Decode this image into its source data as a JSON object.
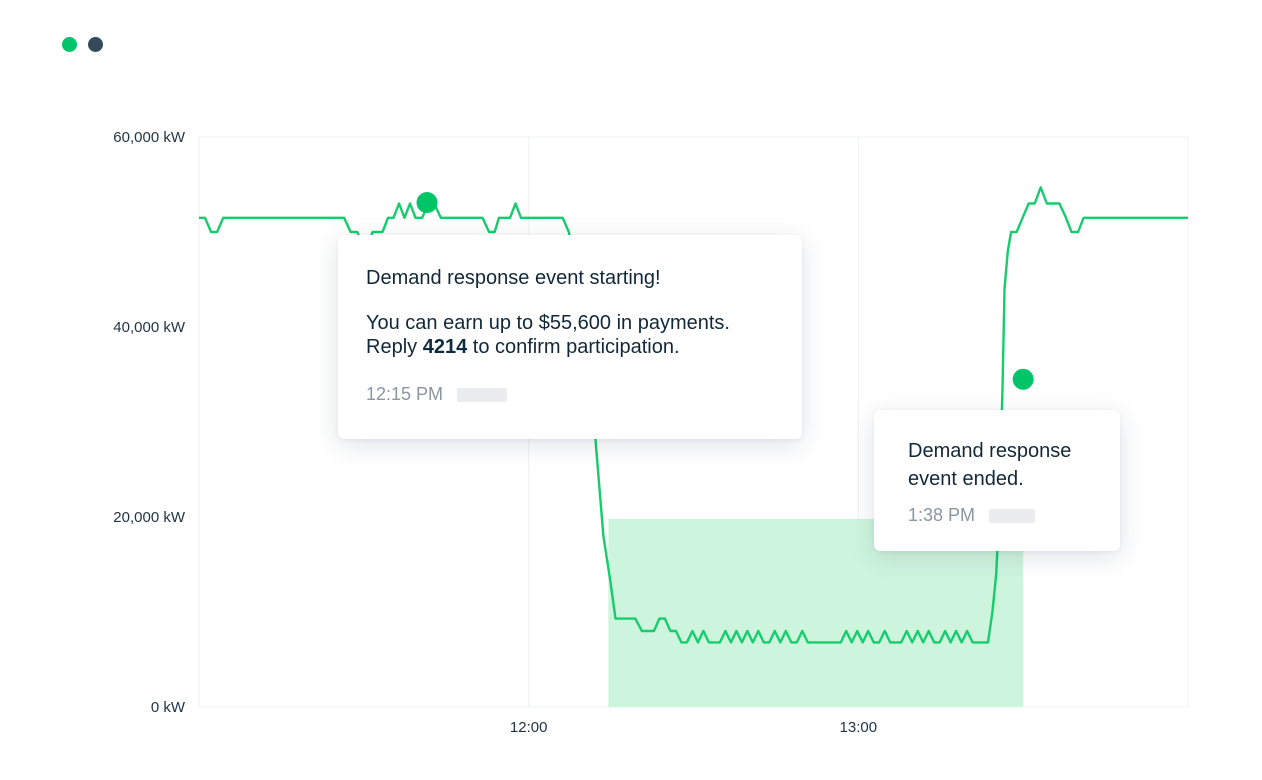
{
  "window": {
    "dot_colors": [
      "#00c468",
      "#344a5a"
    ]
  },
  "colors": {
    "line": "#16cc6c",
    "marker": "#00c468",
    "event_fill": "#cdf5de",
    "grid": "#eef1f3",
    "axis_text": "#1f3344"
  },
  "chart_data": {
    "type": "line",
    "y_unit": "kW",
    "ylim": [
      0,
      60000
    ],
    "yticks": [
      {
        "value": 0,
        "label": "0 kW"
      },
      {
        "value": 20000,
        "label": "20,000 kW"
      },
      {
        "value": 40000,
        "label": "40,000 kW"
      },
      {
        "value": 60000,
        "label": "60,000 kW"
      }
    ],
    "xlim_minutes": [
      660,
      840
    ],
    "xticks": [
      {
        "value": 720,
        "label": "12:00"
      },
      {
        "value": 780,
        "label": "13:00"
      }
    ],
    "grid": true,
    "series": [
      {
        "points": [
          [
            660,
            51500
          ],
          [
            661.1,
            51500
          ],
          [
            662.2,
            50000
          ],
          [
            663.3,
            50000
          ],
          [
            664.4,
            51500
          ],
          [
            665.5,
            51500
          ],
          [
            667,
            51500
          ],
          [
            668.5,
            51500
          ],
          [
            670,
            51500
          ],
          [
            671.5,
            51500
          ],
          [
            673,
            51500
          ],
          [
            674.5,
            51500
          ],
          [
            676,
            51500
          ],
          [
            677.5,
            51500
          ],
          [
            679,
            51500
          ],
          [
            680.5,
            51500
          ],
          [
            682,
            51500
          ],
          [
            683.5,
            51500
          ],
          [
            685,
            51500
          ],
          [
            686.4,
            51500
          ],
          [
            687.6,
            50000
          ],
          [
            688.8,
            50000
          ],
          [
            689.8,
            48800
          ],
          [
            690.8,
            48800
          ],
          [
            691.6,
            50000
          ],
          [
            692.4,
            50000
          ],
          [
            693.4,
            50000
          ],
          [
            694.4,
            51500
          ],
          [
            695.4,
            51500
          ],
          [
            696.4,
            53000
          ],
          [
            697.4,
            51500
          ],
          [
            698.4,
            53000
          ],
          [
            699.4,
            51500
          ],
          [
            700.6,
            51500
          ],
          [
            701.8,
            53000
          ],
          [
            702.8,
            53000
          ],
          [
            704,
            51500
          ],
          [
            705.5,
            51500
          ],
          [
            707,
            51500
          ],
          [
            708.5,
            51500
          ],
          [
            710,
            51500
          ],
          [
            711.6,
            51500
          ],
          [
            712.8,
            50000
          ],
          [
            713.8,
            50000
          ],
          [
            714.6,
            51500
          ],
          [
            715.6,
            51500
          ],
          [
            716.6,
            51500
          ],
          [
            717.6,
            53000
          ],
          [
            718.6,
            51500
          ],
          [
            720,
            51500
          ],
          [
            721.5,
            51500
          ],
          [
            723,
            51500
          ],
          [
            724.5,
            51500
          ],
          [
            726.2,
            51500
          ],
          [
            727.3,
            50000
          ],
          [
            728,
            48000
          ],
          [
            729.2,
            45500
          ],
          [
            730,
            42000
          ],
          [
            730.8,
            38000
          ],
          [
            731.3,
            35000
          ],
          [
            731.9,
            30000
          ],
          [
            732.6,
            25000
          ],
          [
            733.6,
            18000
          ],
          [
            734.8,
            13500
          ],
          [
            735.8,
            9300
          ],
          [
            737,
            9300
          ],
          [
            738.2,
            9300
          ],
          [
            739.4,
            9300
          ],
          [
            740.6,
            8000
          ],
          [
            741.8,
            8000
          ],
          [
            742.8,
            8000
          ],
          [
            743.8,
            9300
          ],
          [
            744.8,
            9300
          ],
          [
            745.8,
            8000
          ],
          [
            746.8,
            8000
          ],
          [
            747.8,
            6800
          ],
          [
            748.8,
            6800
          ],
          [
            749.8,
            8000
          ],
          [
            750.8,
            6800
          ],
          [
            751.8,
            8000
          ],
          [
            752.8,
            6800
          ],
          [
            753.8,
            6800
          ],
          [
            754.8,
            6800
          ],
          [
            755.8,
            8000
          ],
          [
            756.8,
            6800
          ],
          [
            757.8,
            8000
          ],
          [
            758.8,
            6800
          ],
          [
            759.8,
            8000
          ],
          [
            760.8,
            6800
          ],
          [
            761.8,
            8000
          ],
          [
            762.8,
            6800
          ],
          [
            763.8,
            6800
          ],
          [
            764.8,
            8000
          ],
          [
            765.8,
            6800
          ],
          [
            766.8,
            8000
          ],
          [
            767.8,
            6800
          ],
          [
            768.8,
            6800
          ],
          [
            769.8,
            8000
          ],
          [
            770.8,
            6800
          ],
          [
            771.8,
            6800
          ],
          [
            772.8,
            6800
          ],
          [
            773.8,
            6800
          ],
          [
            774.8,
            6800
          ],
          [
            775.8,
            6800
          ],
          [
            776.8,
            6800
          ],
          [
            777.8,
            8000
          ],
          [
            778.8,
            6800
          ],
          [
            779.8,
            8000
          ],
          [
            780.8,
            6800
          ],
          [
            781.8,
            8000
          ],
          [
            782.8,
            6800
          ],
          [
            783.8,
            6800
          ],
          [
            784.8,
            8000
          ],
          [
            785.8,
            6800
          ],
          [
            786.8,
            6800
          ],
          [
            787.8,
            6800
          ],
          [
            788.8,
            8000
          ],
          [
            789.8,
            6800
          ],
          [
            790.8,
            8000
          ],
          [
            791.8,
            6800
          ],
          [
            792.8,
            8000
          ],
          [
            793.8,
            6800
          ],
          [
            794.8,
            6800
          ],
          [
            795.8,
            8000
          ],
          [
            796.8,
            6800
          ],
          [
            797.8,
            8000
          ],
          [
            798.8,
            6800
          ],
          [
            799.8,
            8000
          ],
          [
            800.8,
            6800
          ],
          [
            801.8,
            6800
          ],
          [
            802.8,
            6800
          ],
          [
            803.6,
            6800
          ],
          [
            804.4,
            10000
          ],
          [
            805.1,
            14000
          ],
          [
            805.6,
            20000
          ],
          [
            806,
            28000
          ],
          [
            806.3,
            35000
          ],
          [
            806.6,
            44000
          ],
          [
            807.2,
            48000
          ],
          [
            807.8,
            50000
          ],
          [
            808.8,
            50000
          ],
          [
            809.9,
            51500
          ],
          [
            811,
            53000
          ],
          [
            812.1,
            53000
          ],
          [
            813.2,
            54700
          ],
          [
            814.3,
            53000
          ],
          [
            815.4,
            53000
          ],
          [
            816.6,
            53000
          ],
          [
            817.8,
            51500
          ],
          [
            818.8,
            50000
          ],
          [
            820,
            50000
          ],
          [
            821,
            51500
          ],
          [
            822.5,
            51500
          ],
          [
            824,
            51500
          ],
          [
            825.5,
            51500
          ],
          [
            827,
            51500
          ],
          [
            828.5,
            51500
          ],
          [
            830,
            51500
          ],
          [
            831.5,
            51500
          ],
          [
            833,
            51500
          ],
          [
            834.5,
            51500
          ],
          [
            836,
            51500
          ],
          [
            837.5,
            51500
          ],
          [
            839,
            51500
          ],
          [
            840,
            51500
          ]
        ]
      }
    ],
    "event_window": {
      "start": 734.5,
      "end": 810,
      "baseline_kw": 19800
    },
    "markers": [
      {
        "x": 701.5,
        "y": 53100
      },
      {
        "x": 810,
        "y": 34500
      }
    ]
  },
  "notifications": {
    "start": {
      "title": "Demand response event starting!",
      "body_line1": "You can earn up to $55,600 in payments.",
      "body_prefix": "Reply ",
      "code": "4214",
      "body_suffix": " to confirm participation.",
      "time": "12:15 PM"
    },
    "end": {
      "title_line1": "Demand response",
      "title_line2": "event ended.",
      "time": "1:38 PM"
    }
  }
}
